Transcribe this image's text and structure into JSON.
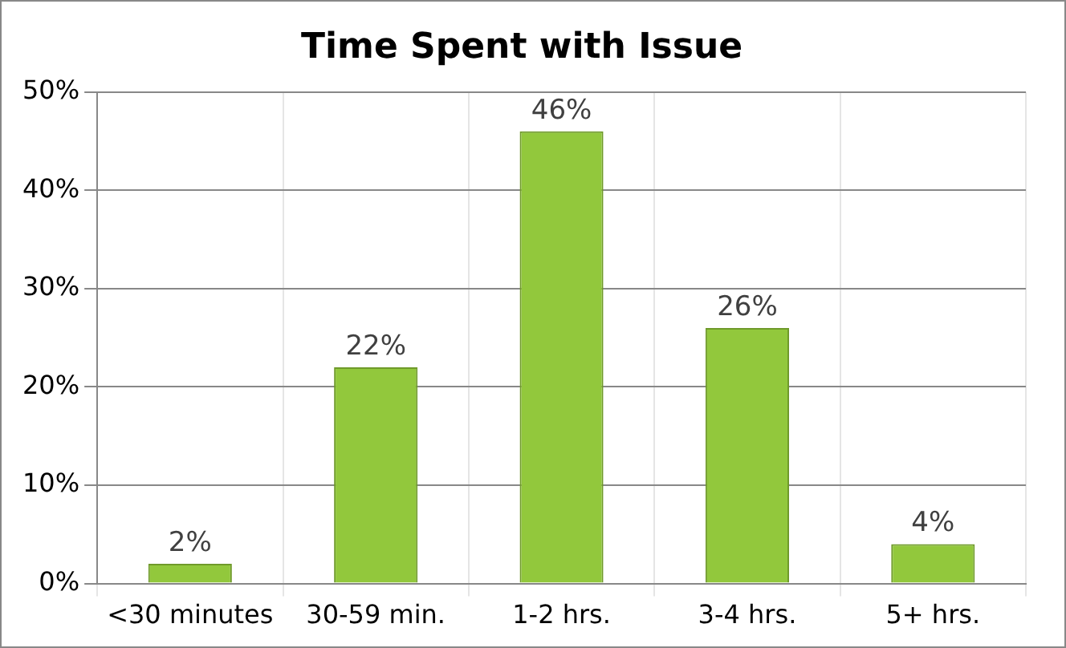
{
  "chart_data": {
    "type": "bar",
    "title": "Time Spent with Issue",
    "categories": [
      "<30 minutes",
      "30-59 min.",
      "1-2 hrs.",
      "3-4 hrs.",
      "5+ hrs."
    ],
    "values": [
      2,
      22,
      46,
      26,
      4
    ],
    "value_labels": [
      "2%",
      "22%",
      "46%",
      "26%",
      "4%"
    ],
    "color": "#92c83c",
    "ylim": [
      0,
      50
    ],
    "yticks": [
      {
        "value": 0,
        "label": "0%"
      },
      {
        "value": 10,
        "label": "10%"
      },
      {
        "value": 20,
        "label": "20%"
      },
      {
        "value": 30,
        "label": "30%"
      },
      {
        "value": 40,
        "label": "40%"
      },
      {
        "value": 50,
        "label": "50%"
      }
    ],
    "grid": true,
    "legend": false
  }
}
